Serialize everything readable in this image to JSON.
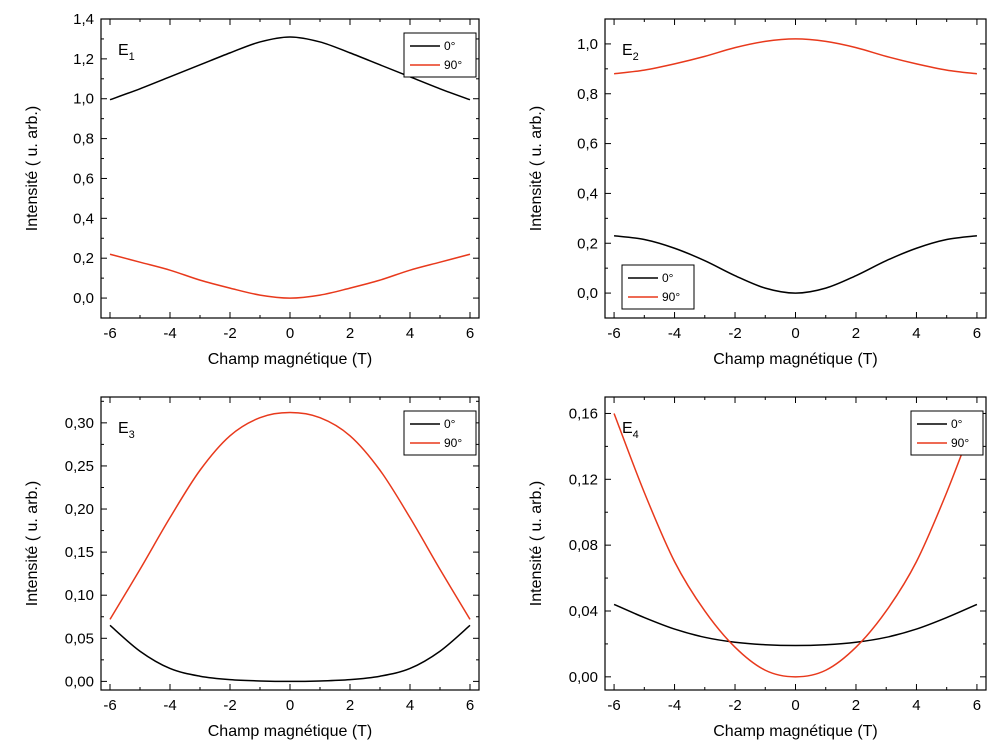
{
  "chart_data": [
    {
      "type": "line",
      "panel_label": "E",
      "panel_subscript": "1",
      "xlabel": "Champ magnétique (T)",
      "ylabel": "Intensité ( u. arb.)",
      "xlim": [
        -6.3,
        6.3
      ],
      "ylim": [
        -0.1,
        1.4
      ],
      "xticks": [
        -6,
        -4,
        -2,
        0,
        2,
        4,
        6
      ],
      "xtick_labels": [
        "-6",
        "-4",
        "-2",
        "0",
        "2",
        "4",
        "6"
      ],
      "yticks": [
        0.0,
        0.2,
        0.4,
        0.6,
        0.8,
        1.0,
        1.2,
        1.4
      ],
      "ytick_labels": [
        "0,0",
        "0,2",
        "0,4",
        "0,6",
        "0,8",
        "1,0",
        "1,2",
        "1,4"
      ],
      "legend_position": "top-right",
      "x": [
        -6,
        -5,
        -4,
        -3,
        -2,
        -1,
        0,
        1,
        2,
        3,
        4,
        5,
        6
      ],
      "series": [
        {
          "name": "0°",
          "color": "#000000",
          "values": [
            0.995,
            1.05,
            1.11,
            1.17,
            1.23,
            1.285,
            1.31,
            1.285,
            1.23,
            1.17,
            1.11,
            1.05,
            0.995
          ]
        },
        {
          "name": "90°",
          "color": "#e8391c",
          "values": [
            0.22,
            0.18,
            0.14,
            0.09,
            0.05,
            0.015,
            0.0,
            0.015,
            0.05,
            0.09,
            0.14,
            0.18,
            0.22
          ]
        }
      ]
    },
    {
      "type": "line",
      "panel_label": "E",
      "panel_subscript": "2",
      "xlabel": "Champ magnétique (T)",
      "ylabel": "Intensité ( u. arb.)",
      "xlim": [
        -6.3,
        6.3
      ],
      "ylim": [
        -0.1,
        1.1
      ],
      "xticks": [
        -6,
        -4,
        -2,
        0,
        2,
        4,
        6
      ],
      "xtick_labels": [
        "-6",
        "-4",
        "-2",
        "0",
        "2",
        "4",
        "6"
      ],
      "yticks": [
        0.0,
        0.2,
        0.4,
        0.6,
        0.8,
        1.0
      ],
      "ytick_labels": [
        "0,0",
        "0,2",
        "0,4",
        "0,6",
        "0,8",
        "1,0"
      ],
      "legend_position": "bottom-left",
      "x": [
        -6,
        -5,
        -4,
        -3,
        -2,
        -1,
        0,
        1,
        2,
        3,
        4,
        5,
        6
      ],
      "series": [
        {
          "name": "0°",
          "color": "#000000",
          "values": [
            0.23,
            0.215,
            0.18,
            0.13,
            0.07,
            0.02,
            0.0,
            0.02,
            0.07,
            0.13,
            0.18,
            0.215,
            0.23
          ]
        },
        {
          "name": "90°",
          "color": "#e8391c",
          "values": [
            0.88,
            0.895,
            0.92,
            0.95,
            0.985,
            1.01,
            1.02,
            1.01,
            0.985,
            0.95,
            0.92,
            0.895,
            0.88
          ]
        }
      ]
    },
    {
      "type": "line",
      "panel_label": "E",
      "panel_subscript": "3",
      "xlabel": "Champ magnétique (T)",
      "ylabel": "Intensité ( u. arb.)",
      "xlim": [
        -6.3,
        6.3
      ],
      "ylim": [
        -0.01,
        0.33
      ],
      "xticks": [
        -6,
        -4,
        -2,
        0,
        2,
        4,
        6
      ],
      "xtick_labels": [
        "-6",
        "-4",
        "-2",
        "0",
        "2",
        "4",
        "6"
      ],
      "yticks": [
        0.0,
        0.05,
        0.1,
        0.15,
        0.2,
        0.25,
        0.3
      ],
      "ytick_labels": [
        "0,00",
        "0,05",
        "0,10",
        "0,15",
        "0,20",
        "0,25",
        "0,30"
      ],
      "legend_position": "top-right",
      "x": [
        -6,
        -5,
        -4,
        -3,
        -2,
        -1,
        0,
        1,
        2,
        3,
        4,
        5,
        6
      ],
      "series": [
        {
          "name": "0°",
          "color": "#000000",
          "values": [
            0.065,
            0.035,
            0.015,
            0.006,
            0.002,
            0.0005,
            0.0,
            0.0005,
            0.002,
            0.006,
            0.015,
            0.035,
            0.065
          ]
        },
        {
          "name": "90°",
          "color": "#e8391c",
          "values": [
            0.072,
            0.13,
            0.19,
            0.245,
            0.285,
            0.306,
            0.312,
            0.306,
            0.285,
            0.245,
            0.19,
            0.13,
            0.072
          ]
        }
      ]
    },
    {
      "type": "line",
      "panel_label": "E",
      "panel_subscript": "4",
      "xlabel": "Champ magnétique (T)",
      "ylabel": "Intensité ( u. arb.)",
      "xlim": [
        -6.3,
        6.3
      ],
      "ylim": [
        -0.008,
        0.17
      ],
      "xticks": [
        -6,
        -4,
        -2,
        0,
        2,
        4,
        6
      ],
      "xtick_labels": [
        "-6",
        "-4",
        "-2",
        "0",
        "2",
        "4",
        "6"
      ],
      "yticks": [
        0.0,
        0.04,
        0.08,
        0.12,
        0.16
      ],
      "ytick_labels": [
        "0,00",
        "0,04",
        "0,08",
        "0,12",
        "0,16"
      ],
      "legend_position": "top-right",
      "x": [
        -6,
        -5,
        -4,
        -3,
        -2,
        -1,
        0,
        1,
        2,
        3,
        4,
        5,
        6
      ],
      "series": [
        {
          "name": "0°",
          "color": "#000000",
          "values": [
            0.044,
            0.036,
            0.029,
            0.024,
            0.021,
            0.0195,
            0.019,
            0.0195,
            0.021,
            0.024,
            0.029,
            0.036,
            0.044
          ]
        },
        {
          "name": "90°",
          "color": "#e8391c",
          "values": [
            0.16,
            0.112,
            0.07,
            0.04,
            0.018,
            0.004,
            0.0,
            0.004,
            0.018,
            0.04,
            0.07,
            0.112,
            0.16
          ]
        }
      ]
    }
  ]
}
